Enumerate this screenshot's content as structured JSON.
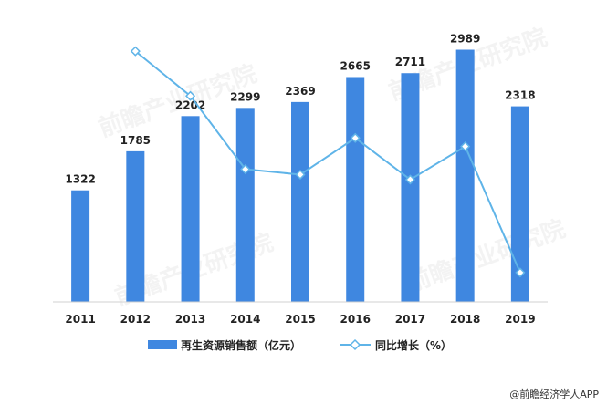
{
  "chart_data": {
    "type": "bar",
    "categories": [
      "2011",
      "2012",
      "2013",
      "2014",
      "2015",
      "2016",
      "2017",
      "2018",
      "2019"
    ],
    "series": [
      {
        "name": "再生资源销售额（亿元）",
        "type": "bar",
        "axis": "left",
        "values": [
          1322,
          1785,
          2202,
          2299,
          2369,
          2665,
          2711,
          2989,
          2318
        ],
        "color": "#3f87e0",
        "show_labels": true
      },
      {
        "name": "同比增长（%）",
        "type": "line",
        "axis": "right",
        "values": [
          null,
          35.0,
          23.4,
          4.4,
          3.0,
          12.5,
          1.7,
          10.3,
          -22.4
        ],
        "color": "#5fb4e8",
        "marker": "diamond",
        "show_labels": false
      }
    ],
    "ylim_left": [
      0,
      3200
    ],
    "ylim_right": [
      -30,
      40
    ],
    "grid": false,
    "legend_position": "bottom",
    "title": "",
    "xlabel": "",
    "ylabel": ""
  },
  "source": "@前瞻经济学人APP",
  "watermark": "前瞻产业研究院"
}
